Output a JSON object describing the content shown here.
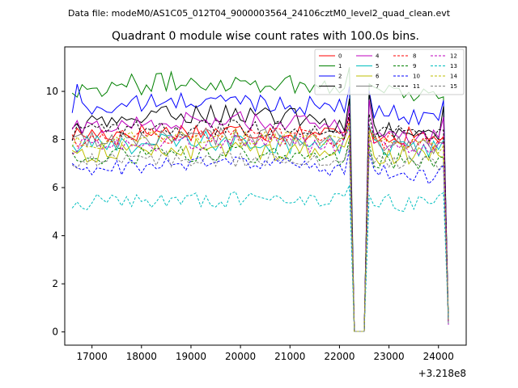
{
  "chart_data": {
    "type": "line",
    "suptitle": "Data file: modeM0/AS1C05_012T04_9000003564_24106cztM0_level2_quad_clean.evt",
    "title": "Quadrant 0 module wise count rates with 100.0s bins.",
    "xlabel": "",
    "ylabel": "",
    "x_offset_label": "+3.218e8",
    "xlim": [
      16450,
      24560
    ],
    "ylim": [
      -0.55,
      11.85
    ],
    "x_ticks": [
      17000,
      18000,
      19000,
      20000,
      21000,
      22000,
      23000,
      24000
    ],
    "x_tick_labels": [
      "17000",
      "18000",
      "19000",
      "20000",
      "21000",
      "22000",
      "23000",
      "24000"
    ],
    "y_ticks": [
      0,
      2,
      4,
      6,
      8,
      10
    ],
    "y_tick_labels": [
      "0",
      "2",
      "4",
      "6",
      "8",
      "10"
    ],
    "legend_position": "upper-right",
    "legend_columns": 4,
    "x_start": 16600,
    "x_step": 100,
    "gaps": [
      [
        22300,
        22500
      ],
      [
        24200,
        24200
      ]
    ],
    "series": [
      {
        "name": "0",
        "color": "#ff0000",
        "dash": "solid",
        "base": 8.2,
        "amp": 0.4,
        "trend": 0.15,
        "peak0": 8.4,
        "peak1": 8.2
      },
      {
        "name": "1",
        "color": "#008000",
        "dash": "solid",
        "base": 10.1,
        "amp": 0.45,
        "trend": 0.3,
        "peak0": 10.6,
        "peak1": 9.8
      },
      {
        "name": "2",
        "color": "#0000ff",
        "dash": "solid",
        "base": 9.2,
        "amp": 0.4,
        "trend": 0.4,
        "peak0": 10.2,
        "peak1": 9.6
      },
      {
        "name": "3",
        "color": "#000000",
        "dash": "solid",
        "base": 8.5,
        "amp": 0.4,
        "trend": 0.6,
        "peak0": 10.0,
        "peak1": 9.3
      },
      {
        "name": "4",
        "color": "#bf00bf",
        "dash": "solid",
        "base": 8.4,
        "amp": 0.4,
        "trend": 0.4,
        "peak0": 9.6,
        "peak1": 8.8
      },
      {
        "name": "5",
        "color": "#00bfbf",
        "dash": "solid",
        "base": 7.7,
        "amp": 0.45,
        "trend": 0.2,
        "peak0": 8.4,
        "peak1": 7.8
      },
      {
        "name": "6",
        "color": "#bfbf00",
        "dash": "solid",
        "base": 7.4,
        "amp": 0.45,
        "trend": 0.2,
        "peak0": 8.0,
        "peak1": 7.4
      },
      {
        "name": "7",
        "color": "#808080",
        "dash": "solid",
        "base": 7.9,
        "amp": 0.4,
        "trend": 0.2,
        "peak0": 8.5,
        "peak1": 8.0
      },
      {
        "name": "8",
        "color": "#ff0000",
        "dash": "dashed",
        "base": 8.0,
        "amp": 0.35,
        "trend": 0.2,
        "peak0": 8.6,
        "peak1": 8.1
      },
      {
        "name": "9",
        "color": "#008000",
        "dash": "dashed",
        "base": 7.2,
        "amp": 0.35,
        "trend": 0.2,
        "peak0": 7.8,
        "peak1": 7.3
      },
      {
        "name": "10",
        "color": "#0000ff",
        "dash": "dashed",
        "base": 6.7,
        "amp": 0.35,
        "trend": 0.3,
        "peak0": 7.3,
        "peak1": 6.9
      },
      {
        "name": "11",
        "color": "#000000",
        "dash": "dashed",
        "base": 8.3,
        "amp": 0.35,
        "trend": 0.2,
        "peak0": 8.8,
        "peak1": 8.3
      },
      {
        "name": "12",
        "color": "#bf00bf",
        "dash": "dashed",
        "base": 7.7,
        "amp": 0.35,
        "trend": 0.2,
        "peak0": 8.2,
        "peak1": 7.7
      },
      {
        "name": "13",
        "color": "#00bfbf",
        "dash": "dashed",
        "base": 5.4,
        "amp": 0.35,
        "trend": 0.1,
        "peak0": 5.8,
        "peak1": 5.6
      },
      {
        "name": "14",
        "color": "#bfbf00",
        "dash": "dashed",
        "base": 7.9,
        "amp": 0.35,
        "trend": 0.2,
        "peak0": 8.4,
        "peak1": 7.9
      },
      {
        "name": "15",
        "color": "#808080",
        "dash": "dashed",
        "base": 7.1,
        "amp": 0.35,
        "trend": 0.1,
        "peak0": 7.4,
        "peak1": 7.1
      }
    ]
  }
}
